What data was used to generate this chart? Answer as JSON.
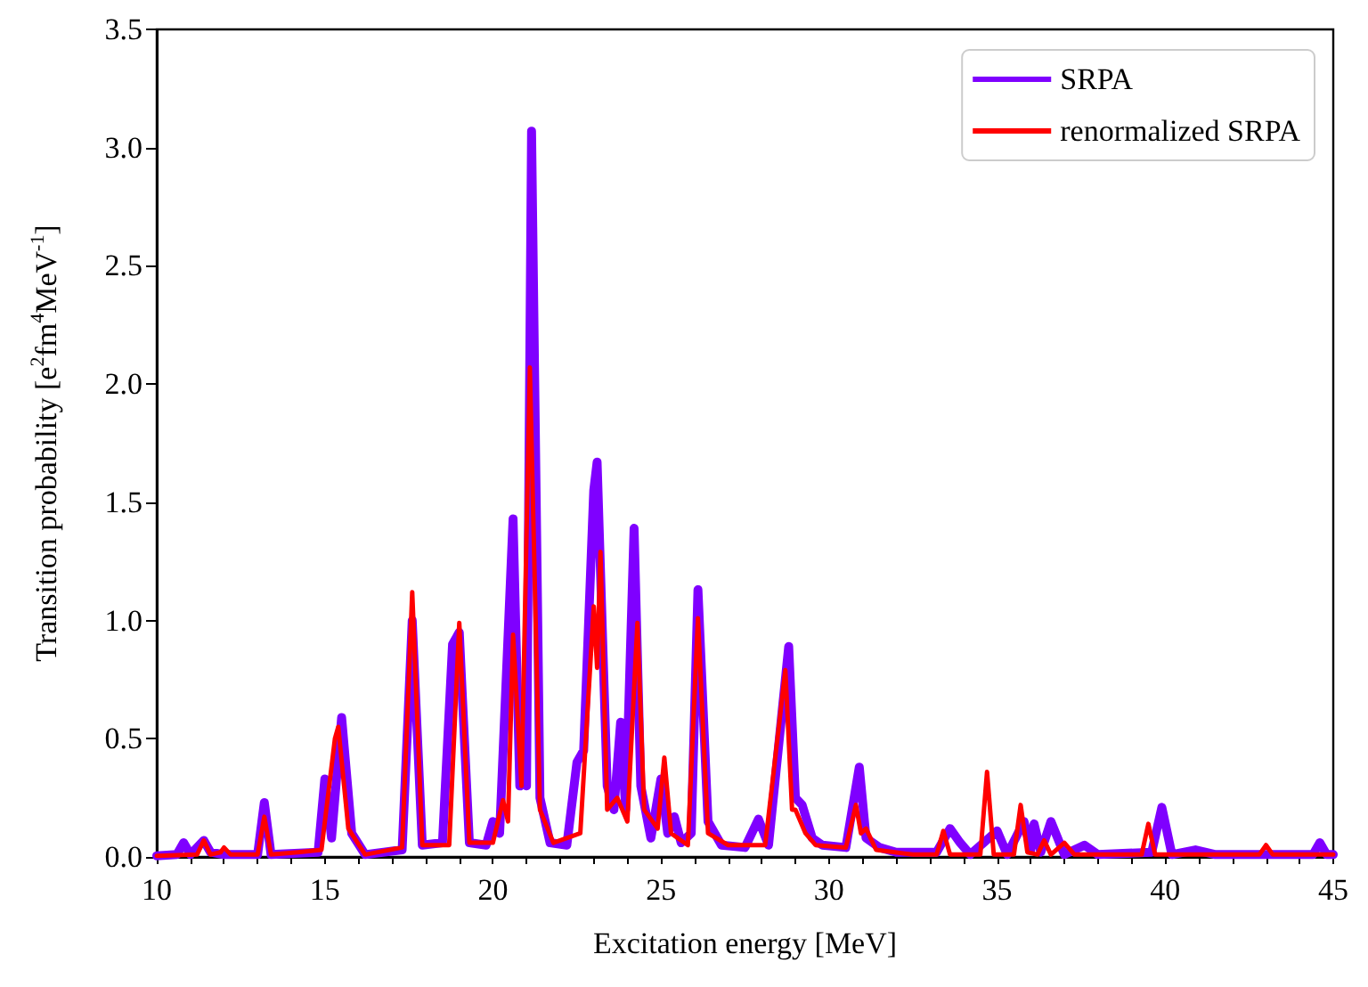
{
  "chart_data": {
    "type": "line",
    "xlabel": "Excitation energy [MeV]",
    "ylabel": "Transition probability [e$^{2}$fm$^{4}$MeV$^{-1}$]",
    "xlim": [
      10,
      45
    ],
    "xticks": [
      10,
      15,
      20,
      25,
      30,
      35,
      40,
      45
    ],
    "ylim": [
      0,
      3.5
    ],
    "yticks": [
      {
        "value": 0,
        "label": "0.0"
      },
      {
        "value": 0.5,
        "label": "0.5"
      },
      {
        "value": 1,
        "label": "1.0"
      },
      {
        "value": 1.5,
        "label": "1.5"
      },
      {
        "value": 2,
        "label": "2.0"
      },
      {
        "value": 2.5,
        "label": "2.5"
      },
      {
        "value": 3,
        "label": "3.0"
      },
      {
        "value": 3.5,
        "label": "3.5"
      }
    ],
    "grid": false,
    "legend": "top right",
    "marker": "none",
    "line_style": "solid",
    "series": [
      {
        "name": "SRPA",
        "color": "#7f00ff",
        "x": [
          10,
          10.6,
          10.8,
          11.0,
          11.4,
          11.6,
          12.0,
          13.0,
          13.2,
          13.4,
          14.8,
          15.0,
          15.2,
          15.5,
          15.8,
          16.2,
          17.3,
          17.6,
          17.9,
          18.5,
          18.8,
          19.0,
          19.3,
          19.8,
          20.0,
          20.2,
          20.6,
          20.8,
          20.9,
          21.0,
          21.15,
          21.4,
          21.7,
          22.2,
          22.5,
          22.7,
          23.0,
          23.1,
          23.4,
          23.6,
          23.8,
          23.95,
          24.2,
          24.4,
          24.7,
          25.0,
          25.2,
          25.4,
          25.6,
          25.9,
          26.1,
          26.4,
          26.8,
          27.5,
          27.9,
          28.2,
          28.8,
          29.0,
          29.2,
          29.5,
          29.8,
          30.5,
          30.9,
          31.1,
          31.5,
          32.0,
          33.2,
          33.6,
          33.9,
          34.2,
          35.0,
          35.3,
          35.8,
          36.0,
          36.1,
          36.3,
          36.6,
          37.0,
          37.6,
          38.0,
          39.6,
          39.9,
          40.2,
          40.9,
          41.5,
          44.4,
          44.6,
          44.8,
          45
        ],
        "values": [
          0.005,
          0.01,
          0.06,
          0.01,
          0.07,
          0.02,
          0.01,
          0.01,
          0.23,
          0.01,
          0.02,
          0.33,
          0.08,
          0.59,
          0.1,
          0.01,
          0.03,
          1.0,
          0.05,
          0.06,
          0.9,
          0.95,
          0.06,
          0.05,
          0.15,
          0.1,
          1.43,
          0.3,
          0.55,
          0.3,
          3.07,
          0.25,
          0.06,
          0.05,
          0.4,
          0.45,
          1.55,
          1.67,
          0.3,
          0.2,
          0.57,
          0.2,
          1.39,
          0.3,
          0.08,
          0.33,
          0.1,
          0.17,
          0.06,
          0.1,
          1.13,
          0.15,
          0.05,
          0.04,
          0.16,
          0.05,
          0.89,
          0.25,
          0.22,
          0.08,
          0.05,
          0.04,
          0.38,
          0.08,
          0.04,
          0.02,
          0.02,
          0.12,
          0.06,
          0.01,
          0.11,
          0.01,
          0.15,
          0.03,
          0.14,
          0.02,
          0.15,
          0.01,
          0.05,
          0.01,
          0.02,
          0.21,
          0.01,
          0.03,
          0.01,
          0.01,
          0.06,
          0.01,
          0.01
        ]
      },
      {
        "name": "renormalized SRPA",
        "color": "#ff0000",
        "x": [
          10,
          11.2,
          11.4,
          11.6,
          11.9,
          12.0,
          12.2,
          13.0,
          13.2,
          13.4,
          14.2,
          14.9,
          15.3,
          15.4,
          15.7,
          16.2,
          17.3,
          17.6,
          17.9,
          18.7,
          19.0,
          19.3,
          20.0,
          20.3,
          20.45,
          20.6,
          20.85,
          21.1,
          21.4,
          21.8,
          22.6,
          23.0,
          23.1,
          23.2,
          23.4,
          23.7,
          24.0,
          24.3,
          24.5,
          24.9,
          25.1,
          25.3,
          25.8,
          26.1,
          26.4,
          27.0,
          27.8,
          28.1,
          28.7,
          28.9,
          29.0,
          29.3,
          29.6,
          30.5,
          30.8,
          30.95,
          31.1,
          31.4,
          32.5,
          33.2,
          33.4,
          33.6,
          34.5,
          34.7,
          34.9,
          35.5,
          35.7,
          35.9,
          36.2,
          36.4,
          36.6,
          37.0,
          37.3,
          39.3,
          39.5,
          39.7,
          42.8,
          43.0,
          43.2,
          45
        ],
        "values": [
          0.005,
          0.01,
          0.07,
          0.01,
          0.02,
          0.04,
          0.01,
          0.01,
          0.17,
          0.01,
          0.02,
          0.03,
          0.5,
          0.55,
          0.12,
          0.01,
          0.04,
          1.12,
          0.05,
          0.05,
          0.99,
          0.06,
          0.06,
          0.24,
          0.15,
          0.94,
          0.3,
          2.07,
          0.2,
          0.06,
          0.1,
          1.06,
          0.8,
          1.29,
          0.2,
          0.25,
          0.15,
          0.99,
          0.2,
          0.12,
          0.42,
          0.1,
          0.05,
          1.01,
          0.1,
          0.05,
          0.05,
          0.05,
          0.79,
          0.2,
          0.2,
          0.1,
          0.05,
          0.04,
          0.22,
          0.1,
          0.12,
          0.03,
          0.01,
          0.01,
          0.11,
          0.01,
          0.01,
          0.36,
          0.01,
          0.01,
          0.22,
          0.02,
          0.01,
          0.07,
          0.01,
          0.06,
          0.01,
          0.01,
          0.14,
          0.01,
          0.01,
          0.05,
          0.01,
          0.01
        ]
      }
    ]
  }
}
